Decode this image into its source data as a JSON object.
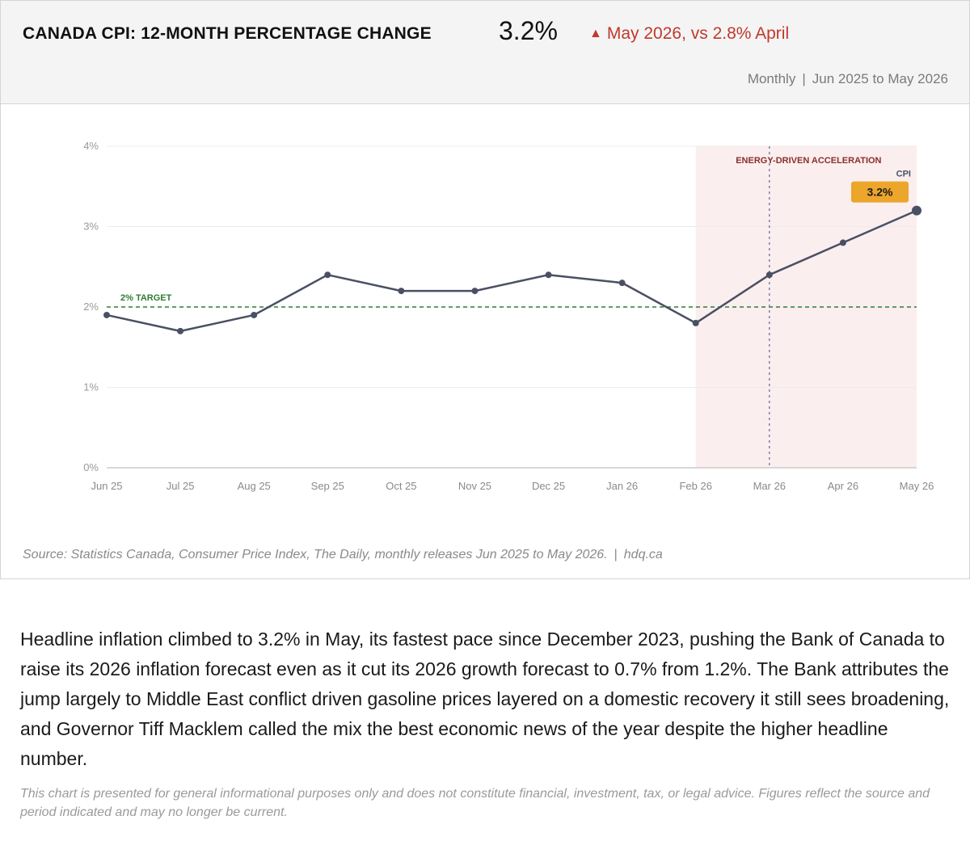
{
  "header": {
    "title": "CANADA CPI: 12-MONTH PERCENTAGE CHANGE",
    "value": "3.2%",
    "change_arrow": "▲",
    "change_text": "May 2026, vs 2.8% April",
    "frequency": "Monthly",
    "separator": "|",
    "range": "Jun 2025 to May 2026"
  },
  "colors": {
    "line": "#4a5063",
    "target": "#2e7d32",
    "shade": "#fbeeee",
    "annotation": "#8b2e2e",
    "callout": "#eba62b",
    "up": "#c0392b"
  },
  "chart_data": {
    "type": "line",
    "x": [
      "Jun 25",
      "Jul 25",
      "Aug 25",
      "Sep 25",
      "Oct 25",
      "Nov 25",
      "Dec 25",
      "Jan 26",
      "Feb 26",
      "Mar 26",
      "Apr 26",
      "May 26"
    ],
    "series": [
      {
        "name": "CPI",
        "values": [
          1.9,
          1.7,
          1.9,
          2.4,
          2.2,
          2.2,
          2.4,
          2.3,
          1.8,
          2.4,
          2.8,
          3.2
        ]
      }
    ],
    "yticks": [
      "0%",
      "1%",
      "2%",
      "3%",
      "4%"
    ],
    "ylim": [
      0,
      4
    ],
    "grid": true,
    "reference_line": {
      "value": 2,
      "label": "2% TARGET"
    },
    "shaded_region": {
      "from": "Feb 26",
      "to": "May 26",
      "label": "ENERGY-DRIVEN ACCELERATION"
    },
    "marker_line": "Mar 26",
    "end_label": {
      "series": "CPI",
      "value_label": "3.2%"
    }
  },
  "footer": {
    "source": "Source: Statistics Canada, Consumer Price Index, The Daily, monthly releases Jun 2025 to May 2026.",
    "separator": "|",
    "site": "hdq.ca"
  },
  "body": {
    "paragraph": "Headline inflation climbed to 3.2% in May, its fastest pace since December 2023, pushing the Bank of Canada to raise its 2026 inflation forecast even as it cut its 2026 growth forecast to 0.7% from 1.2%. The Bank attributes the jump largely to Middle East conflict driven gasoline prices layered on a domestic recovery it still sees broadening, and Governor Tiff Macklem called the mix the best economic news of the year despite the higher headline number.",
    "disclaimer": "This chart is presented for general informational purposes only and does not constitute financial, investment, tax, or legal advice. Figures reflect the source and period indicated and may no longer be current."
  }
}
